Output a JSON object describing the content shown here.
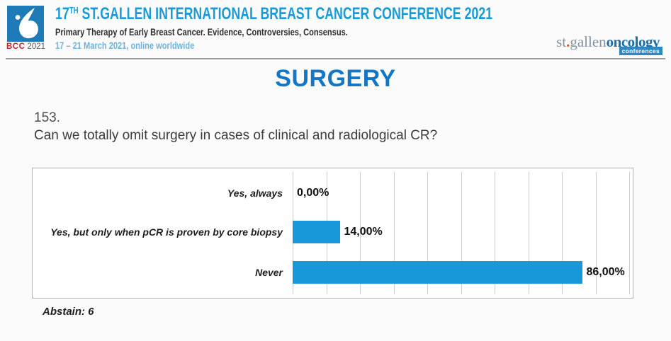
{
  "header": {
    "logo_badge": {
      "bcc": "BCC",
      "year": "2021"
    },
    "title_prefix": "17",
    "title_superscript": "TH",
    "title_rest": " ST.GALLEN INTERNATIONAL BREAST CANCER CONFERENCE 2021",
    "subtitle": "Primary Therapy of Early Breast Cancer. Evidence, Controversies, Consensus.",
    "date_line": "17 – 21 March 2021, online worldwide",
    "org_logo": {
      "st": "st",
      "dot": ".",
      "gallen": "gallen",
      "oncology": "oncology",
      "badge": "conferences"
    }
  },
  "slide": {
    "section_title": "SURGERY",
    "question_number": "153.",
    "question_text": "Can we totally omit surgery in cases of clinical and radiological CR?",
    "abstain_note": "Abstain: 6"
  },
  "chart_data": {
    "type": "bar",
    "orientation": "horizontal",
    "title": "",
    "xlabel": "",
    "ylabel": "",
    "categories": [
      "Yes, always",
      "Yes, but only when pCR is proven by core biopsy",
      "Never"
    ],
    "values": [
      0,
      14,
      86
    ],
    "value_labels": [
      "0,00%",
      "14,00%",
      "86,00%"
    ],
    "xlim": [
      0,
      100
    ],
    "gridline_interval": 10,
    "grid": true,
    "legend": false,
    "bar_color": "#1898d8"
  },
  "colors": {
    "header_title_blue": "#1b9ad6",
    "section_title_blue": "#1377c6",
    "bar_blue": "#1898d8",
    "bcc_red": "#c4232b",
    "logo_square_blue": "#1f7ab8",
    "badge_blue": "#2f88c0",
    "orange_dot": "#d4542a"
  }
}
